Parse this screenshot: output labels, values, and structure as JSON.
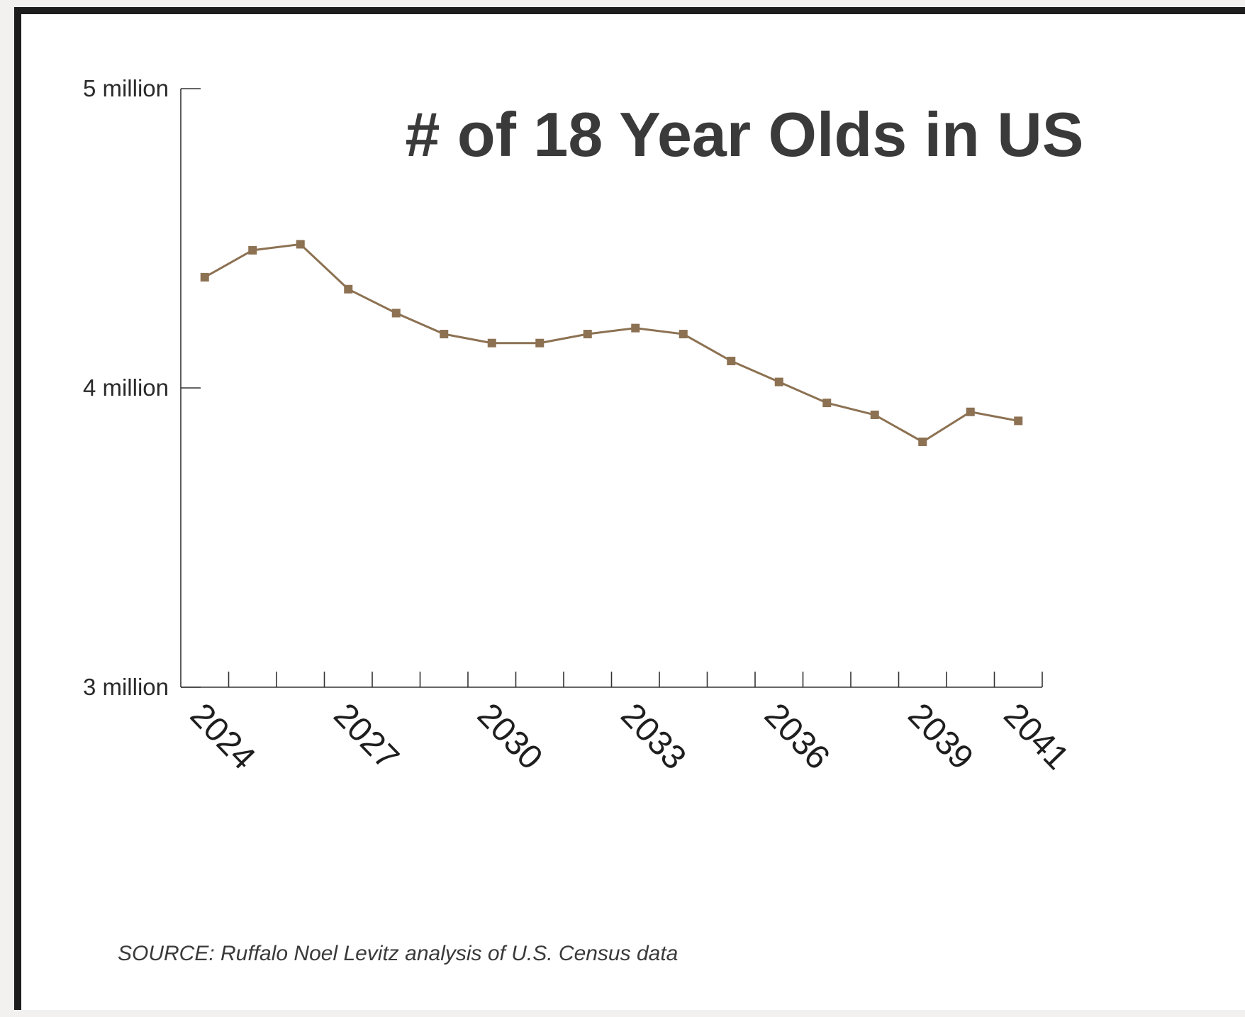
{
  "chart_data": {
    "type": "line",
    "title": "# of 18 Year Olds in US",
    "xlabel": "",
    "ylabel": "",
    "x": [
      2024,
      2025,
      2026,
      2027,
      2028,
      2029,
      2030,
      2031,
      2032,
      2033,
      2034,
      2035,
      2036,
      2037,
      2038,
      2039,
      2040,
      2041
    ],
    "values": [
      4.37,
      4.46,
      4.48,
      4.33,
      4.25,
      4.18,
      4.15,
      4.15,
      4.18,
      4.2,
      4.18,
      4.09,
      4.02,
      3.95,
      3.91,
      3.82,
      3.92,
      3.89
    ],
    "ylim": [
      3,
      5
    ],
    "xlim": [
      2023.5,
      2041.5
    ],
    "y_ticks": [
      {
        "value": 5,
        "label": "5 million"
      },
      {
        "value": 4,
        "label": "4 million"
      },
      {
        "value": 3,
        "label": "3 million"
      }
    ],
    "x_tick_labels": [
      "2024",
      "2027",
      "2030",
      "2033",
      "2036",
      "2039",
      "2041"
    ],
    "line_color": "#8c7152",
    "marker": "square",
    "grid": false,
    "legend": "none"
  },
  "source": "SOURCE: Ruffalo Noel Levitz analysis of U.S. Census data"
}
